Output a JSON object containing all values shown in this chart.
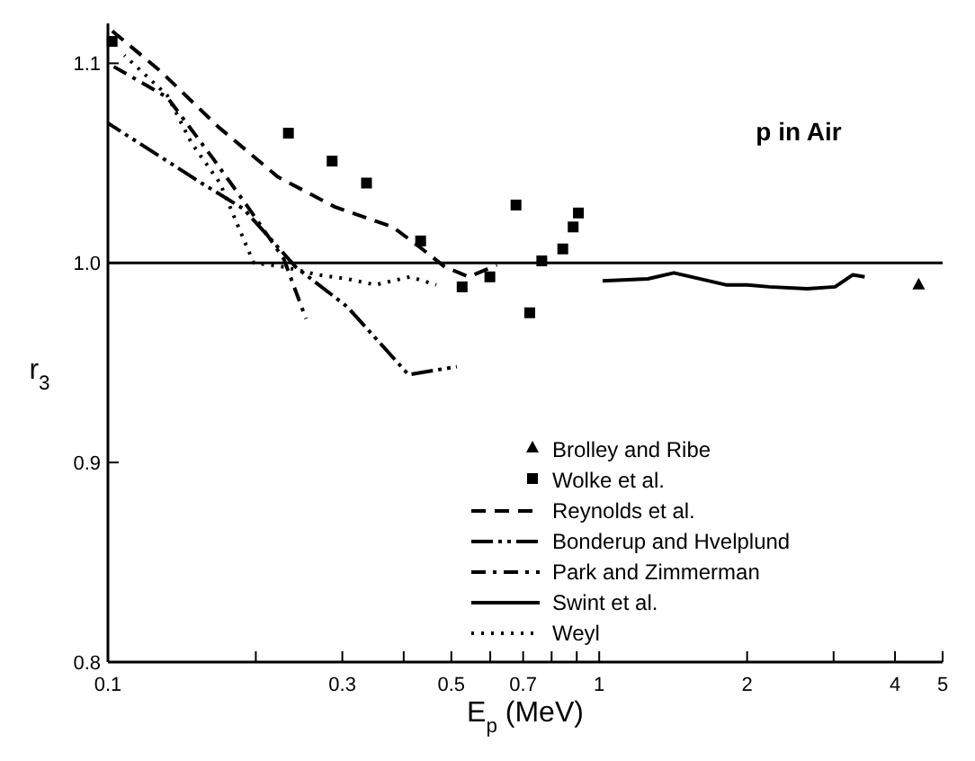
{
  "chart_data": {
    "type": "line",
    "title": "p in Air",
    "xlabel": "E$_{p}$ (MeV)",
    "ylabel": "r$_{3}$",
    "log": "x",
    "xlim": [
      0.1,
      5
    ],
    "ylim": [
      0.8,
      1.12
    ],
    "xticks": [
      0.1,
      {
        "value": 0.2,
        "label": null
      },
      0.3,
      {
        "value": 0.4,
        "label": null
      },
      0.5,
      {
        "value": 0.6,
        "label": null
      },
      0.7,
      {
        "value": 0.8,
        "label": null
      },
      {
        "value": 0.9,
        "label": null
      },
      1,
      2,
      {
        "value": 3,
        "label": null
      },
      4,
      5
    ],
    "yticks": [
      0.8,
      0.9,
      {
        "value": 1,
        "label": "1.0"
      },
      1.1
    ],
    "ref_lines": [
      {
        "axis": "y",
        "value": 1,
        "color": "#000000"
      }
    ],
    "legend": "bottom",
    "series": [
      {
        "name": "Brolley and Ribe",
        "type": "scatter",
        "marker": "triangle",
        "color": "#000000",
        "x": [
          4.47
        ],
        "values": [
          0.989
        ]
      },
      {
        "name": "Wolke et al.",
        "type": "scatter",
        "marker": "square",
        "color": "#000000",
        "x": [
          0.102,
          0.233,
          0.286,
          0.336,
          0.433,
          0.526,
          0.599,
          0.677,
          0.722,
          0.764,
          0.843,
          0.885,
          0.907
        ],
        "values": [
          1.111,
          1.065,
          1.051,
          1.04,
          1.011,
          0.988,
          0.993,
          1.029,
          0.975,
          1.001,
          1.007,
          1.018,
          1.025
        ]
      },
      {
        "name": "Reynolds et al.",
        "line_style": "dashed",
        "color": "#000000",
        "x": [
          0.1,
          0.128,
          0.168,
          0.222,
          0.29,
          0.38,
          0.436,
          0.485,
          0.543,
          0.619
        ],
        "values": [
          1.118,
          1.096,
          1.068,
          1.043,
          1.028,
          1.018,
          1.007,
          0.998,
          0.993,
          0.999
        ]
      },
      {
        "name": "Bonderup and Hvelplund",
        "line_style": "dashdotdot",
        "color": "#000000",
        "x": [
          0.1,
          0.155,
          0.189,
          0.241,
          0.307,
          0.409,
          0.513
        ],
        "values": [
          1.07,
          1.04,
          1.027,
          0.998,
          0.978,
          0.944,
          0.948
        ]
      },
      {
        "name": "Park and Zimmerman",
        "line_style": "dashdot",
        "color": "#000000",
        "x": [
          0.1,
          0.132,
          0.164,
          0.194,
          0.228,
          0.253
        ],
        "values": [
          1.1,
          1.083,
          1.052,
          1.027,
          1.002,
          0.972
        ]
      },
      {
        "name": "Swint et al.",
        "line_style": "solid",
        "color": "#000000",
        "x": [
          1.016,
          1.256,
          1.419,
          1.81,
          2.0,
          2.22,
          2.65,
          3.02,
          3.28,
          3.47
        ],
        "values": [
          0.991,
          0.992,
          0.995,
          0.989,
          0.989,
          0.988,
          0.987,
          0.988,
          0.994,
          0.993
        ]
      },
      {
        "name": "Weyl",
        "line_style": "dotted",
        "color": "#000000",
        "x": [
          0.108,
          0.132,
          0.148,
          0.169,
          0.198,
          0.228,
          0.268,
          0.307,
          0.35,
          0.412,
          0.466
        ],
        "values": [
          1.104,
          1.084,
          1.06,
          1.04,
          1.0,
          0.998,
          0.994,
          0.992,
          0.989,
          0.993,
          0.989
        ]
      }
    ]
  }
}
